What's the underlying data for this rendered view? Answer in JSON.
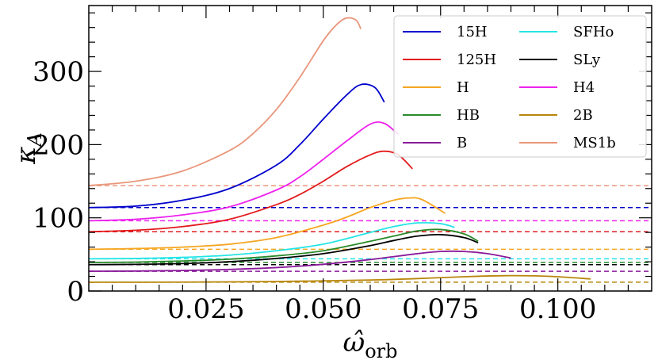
{
  "chart_data": {
    "type": "line",
    "xlabel": "ω̂",
    "xlabel_sub": "orb",
    "ylabel": "κ",
    "ylabel_sub": "A",
    "xlim": [
      0.0,
      0.12
    ],
    "ylim": [
      0,
      390
    ],
    "xticks": [
      0.025,
      0.05,
      0.075,
      0.1
    ],
    "xtick_labels": [
      "0.025",
      "0.050",
      "0.075",
      "0.100"
    ],
    "yticks": [
      0,
      100,
      200,
      300
    ],
    "ytick_labels": [
      "0",
      "100",
      "200",
      "300"
    ],
    "legend_position": "top-right",
    "series": [
      {
        "name": "15H",
        "color": "#0000cc",
        "asymptote": 114,
        "x": [
          0.0,
          0.01,
          0.02,
          0.03,
          0.04,
          0.045,
          0.05,
          0.055,
          0.058,
          0.061,
          0.063
        ],
        "y": [
          114,
          116,
          124,
          140,
          172,
          200,
          235,
          268,
          282,
          278,
          258
        ]
      },
      {
        "name": "125H",
        "color": "#e31a1c",
        "asymptote": 81,
        "x": [
          0.0,
          0.01,
          0.02,
          0.03,
          0.04,
          0.045,
          0.05,
          0.055,
          0.06,
          0.063,
          0.066,
          0.069
        ],
        "y": [
          81,
          83,
          88,
          98,
          118,
          132,
          150,
          170,
          186,
          191,
          186,
          167
        ]
      },
      {
        "name": "H",
        "color": "#f5a623",
        "asymptote": 57,
        "x": [
          0.0,
          0.01,
          0.02,
          0.03,
          0.04,
          0.05,
          0.055,
          0.06,
          0.065,
          0.068,
          0.071,
          0.076
        ],
        "y": [
          57,
          58,
          60,
          64,
          73,
          90,
          101,
          114,
          124,
          127,
          125,
          106
        ]
      },
      {
        "name": "HB",
        "color": "#2a8a2a",
        "asymptote": 39,
        "x": [
          0.0,
          0.01,
          0.02,
          0.03,
          0.04,
          0.05,
          0.06,
          0.065,
          0.07,
          0.075,
          0.08,
          0.083
        ],
        "y": [
          39,
          39.5,
          41,
          43.5,
          48,
          55,
          68,
          75,
          82,
          84,
          78,
          68
        ]
      },
      {
        "name": "B",
        "color": "#8a1a9a",
        "asymptote": 27,
        "x": [
          0.0,
          0.01,
          0.02,
          0.03,
          0.04,
          0.05,
          0.06,
          0.07,
          0.075,
          0.08,
          0.085,
          0.09
        ],
        "y": [
          27,
          27.3,
          28,
          29.5,
          32,
          36.5,
          43,
          51,
          54,
          54,
          51,
          45
        ]
      },
      {
        "name": "SFHo",
        "color": "#26e5e5",
        "asymptote": 44,
        "x": [
          0.0,
          0.01,
          0.02,
          0.03,
          0.04,
          0.05,
          0.06,
          0.065,
          0.07,
          0.075,
          0.078
        ],
        "y": [
          44,
          44.5,
          46,
          49,
          55,
          64,
          80,
          88,
          93,
          92,
          87
        ]
      },
      {
        "name": "SLy",
        "color": "#000000",
        "asymptote": 36,
        "x": [
          0.0,
          0.01,
          0.02,
          0.03,
          0.04,
          0.05,
          0.06,
          0.065,
          0.07,
          0.075,
          0.08,
          0.083
        ],
        "y": [
          36,
          36.4,
          37.5,
          40,
          44.5,
          51,
          62,
          69,
          75,
          77,
          73,
          66
        ]
      },
      {
        "name": "H4",
        "color": "#ee22ee",
        "asymptote": 96,
        "x": [
          0.0,
          0.01,
          0.02,
          0.03,
          0.04,
          0.045,
          0.05,
          0.055,
          0.06,
          0.063,
          0.066
        ],
        "y": [
          96,
          98,
          104,
          115,
          138,
          156,
          180,
          205,
          228,
          229,
          214
        ]
      },
      {
        "name": "2B",
        "color": "#b8860b",
        "asymptote": 12,
        "x": [
          0.0,
          0.02,
          0.04,
          0.06,
          0.07,
          0.08,
          0.085,
          0.09,
          0.095,
          0.1,
          0.107
        ],
        "y": [
          12,
          12.2,
          13,
          15,
          17,
          19.5,
          20.5,
          21,
          20.7,
          19.5,
          16.5
        ]
      },
      {
        "name": "MS1b",
        "color": "#e9967a",
        "asymptote": 144,
        "x": [
          0.0,
          0.01,
          0.02,
          0.03,
          0.035,
          0.04,
          0.045,
          0.05,
          0.053,
          0.055,
          0.057,
          0.058
        ],
        "y": [
          144,
          150,
          164,
          192,
          215,
          248,
          292,
          342,
          365,
          373,
          370,
          358
        ]
      }
    ]
  }
}
